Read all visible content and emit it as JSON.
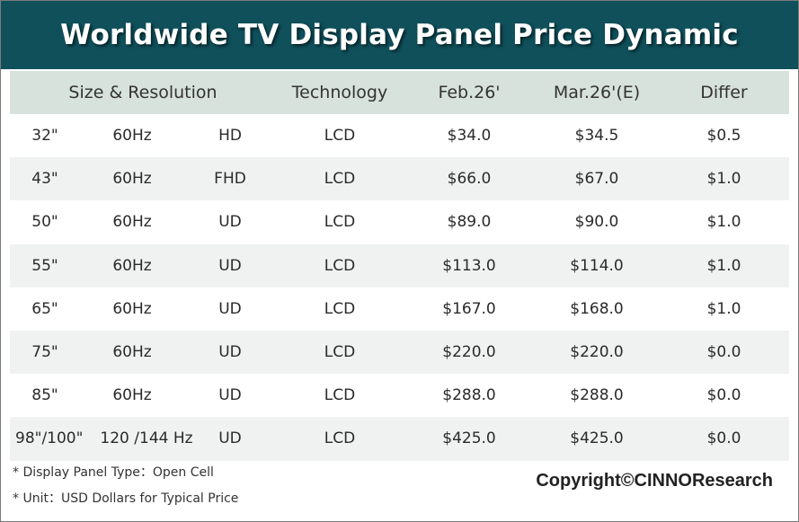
{
  "chart_data": {
    "type": "table",
    "title": "Worldwide TV Display Panel Price Dynamic",
    "header": {
      "size_resolution": "Size & Resolution",
      "technology": "Technology",
      "feb": "Feb.26'",
      "mar": "Mar.26'(E)",
      "differ": "Differ"
    },
    "rows": [
      {
        "size": "32\"",
        "refresh": "60Hz",
        "resolution": "HD",
        "technology": "LCD",
        "feb": "$34.0",
        "mar": "$34.5",
        "differ": "$0.5"
      },
      {
        "size": "43\"",
        "refresh": "60Hz",
        "resolution": "FHD",
        "technology": "LCD",
        "feb": "$66.0",
        "mar": "$67.0",
        "differ": "$1.0"
      },
      {
        "size": "50\"",
        "refresh": "60Hz",
        "resolution": "UD",
        "technology": "LCD",
        "feb": "$89.0",
        "mar": "$90.0",
        "differ": "$1.0"
      },
      {
        "size": "55\"",
        "refresh": "60Hz",
        "resolution": "UD",
        "technology": "LCD",
        "feb": "$113.0",
        "mar": "$114.0",
        "differ": "$1.0"
      },
      {
        "size": "65\"",
        "refresh": "60Hz",
        "resolution": "UD",
        "technology": "LCD",
        "feb": "$167.0",
        "mar": "$168.0",
        "differ": "$1.0"
      },
      {
        "size": "75\"",
        "refresh": "60Hz",
        "resolution": "UD",
        "technology": "LCD",
        "feb": "$220.0",
        "mar": "$220.0",
        "differ": "$0.0"
      },
      {
        "size": "85\"",
        "refresh": "60Hz",
        "resolution": "UD",
        "technology": "LCD",
        "feb": "$288.0",
        "mar": "$288.0",
        "differ": "$0.0"
      },
      {
        "size": "98\"/100\"",
        "refresh": "120 /144 Hz",
        "resolution": "UD",
        "technology": "LCD",
        "feb": "$425.0",
        "mar": "$425.0",
        "differ": "$0.0"
      }
    ],
    "notes": [
      "* Display Panel Type：Open Cell",
      "* Unit：USD Dollars for Typical Price"
    ],
    "copyright": "Copyright©CINNOResearch"
  },
  "colors": {
    "title_background": "#0f505b",
    "title_text": "#ffffff",
    "header_background": "#d7e2dc",
    "shaded_row": "#f0f2f1"
  }
}
